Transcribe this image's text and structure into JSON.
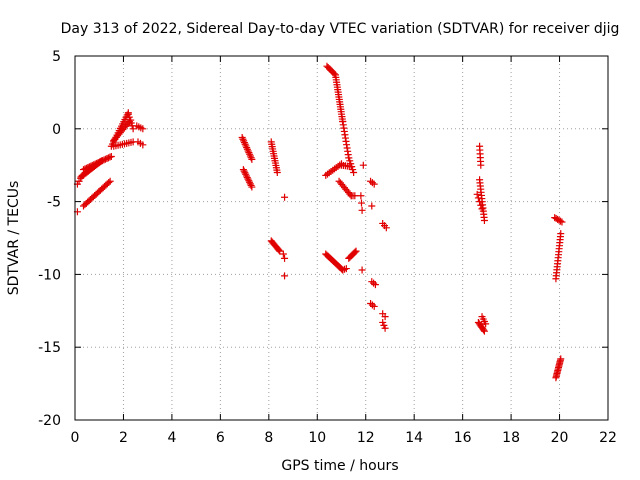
{
  "chart_data": {
    "type": "scatter",
    "title": "Day 313 of 2022, Sidereal Day-to-day VTEC variation (SDTVAR) for receiver djig",
    "xlabel": "GPS time / hours",
    "ylabel": "SDTVAR / TECUs",
    "xlim": [
      0,
      22
    ],
    "ylim": [
      -20,
      5
    ],
    "xticks": [
      "0",
      "2",
      "4",
      "6",
      "8",
      "10",
      "12",
      "14",
      "16",
      "18",
      "20",
      "22"
    ],
    "yticks": [
      "5",
      "0",
      "-5",
      "-10",
      "-15",
      "-20"
    ],
    "grid": true,
    "legend": "none",
    "marker": "+",
    "color": "#e00000",
    "segments": [
      {
        "x0": 0.1,
        "y0": -3.8,
        "x1": 0.3,
        "y1": -3.2,
        "n": 4
      },
      {
        "x0": 0.25,
        "y0": -3.3,
        "x1": 1.1,
        "y1": -2.2,
        "n": 18
      },
      {
        "x0": 0.35,
        "y0": -2.8,
        "x1": 1.5,
        "y1": -1.9,
        "n": 20
      },
      {
        "x0": 1.5,
        "y0": -1.2,
        "x1": 2.2,
        "y1": 1.1,
        "n": 16
      },
      {
        "x0": 1.6,
        "y0": -0.8,
        "x1": 2.3,
        "y1": 0.6,
        "n": 14
      },
      {
        "x0": 2.2,
        "y0": 1.0,
        "x1": 2.4,
        "y1": 0.0,
        "n": 6
      },
      {
        "x0": 1.6,
        "y0": -1.2,
        "x1": 2.4,
        "y1": -0.9,
        "n": 10
      },
      {
        "x0": 2.55,
        "y0": 0.2,
        "x1": 2.8,
        "y1": 0.0,
        "n": 4
      },
      {
        "x0": 2.6,
        "y0": -0.9,
        "x1": 2.8,
        "y1": -1.1,
        "n": 3
      },
      {
        "x0": 0.35,
        "y0": -5.3,
        "x1": 1.45,
        "y1": -3.6,
        "n": 20
      },
      {
        "x0": 0.1,
        "y0": -5.7,
        "x1": 0.15,
        "y1": -5.7,
        "n": 1
      },
      {
        "x0": 6.9,
        "y0": -0.6,
        "x1": 7.3,
        "y1": -2.1,
        "n": 14
      },
      {
        "x0": 6.95,
        "y0": -2.8,
        "x1": 7.3,
        "y1": -4.0,
        "n": 12
      },
      {
        "x0": 8.1,
        "y0": -0.9,
        "x1": 8.35,
        "y1": -3.0,
        "n": 14
      },
      {
        "x0": 8.1,
        "y0": -7.7,
        "x1": 8.45,
        "y1": -8.4,
        "n": 10
      },
      {
        "x0": 8.6,
        "y0": -8.6,
        "x1": 8.65,
        "y1": -8.9,
        "n": 2
      },
      {
        "x0": 8.65,
        "y0": -4.7,
        "x1": 8.65,
        "y1": -4.7,
        "n": 1
      },
      {
        "x0": 8.65,
        "y0": -10.1,
        "x1": 8.65,
        "y1": -10.1,
        "n": 1
      },
      {
        "x0": 10.4,
        "y0": 4.3,
        "x1": 10.75,
        "y1": 3.7,
        "n": 8
      },
      {
        "x0": 10.75,
        "y0": 3.7,
        "x1": 11.05,
        "y1": 0.5,
        "n": 20
      },
      {
        "x0": 11.05,
        "y0": 0.5,
        "x1": 11.3,
        "y1": -2.0,
        "n": 12
      },
      {
        "x0": 11.3,
        "y0": -2.0,
        "x1": 11.5,
        "y1": -3.0,
        "n": 6
      },
      {
        "x0": 10.35,
        "y0": -3.2,
        "x1": 11.0,
        "y1": -2.4,
        "n": 10
      },
      {
        "x0": 11.0,
        "y0": -2.5,
        "x1": 11.4,
        "y1": -2.6,
        "n": 6
      },
      {
        "x0": 10.9,
        "y0": -3.6,
        "x1": 11.4,
        "y1": -4.6,
        "n": 10
      },
      {
        "x0": 11.4,
        "y0": -4.6,
        "x1": 11.55,
        "y1": -4.6,
        "n": 3
      },
      {
        "x0": 10.35,
        "y0": -8.6,
        "x1": 11.05,
        "y1": -9.7,
        "n": 16
      },
      {
        "x0": 11.05,
        "y0": -9.7,
        "x1": 11.2,
        "y1": -9.6,
        "n": 3
      },
      {
        "x0": 11.3,
        "y0": -8.9,
        "x1": 11.6,
        "y1": -8.4,
        "n": 8
      },
      {
        "x0": 11.9,
        "y0": -2.5,
        "x1": 11.9,
        "y1": -2.5,
        "n": 1
      },
      {
        "x0": 11.8,
        "y0": -4.6,
        "x1": 11.85,
        "y1": -5.6,
        "n": 3
      },
      {
        "x0": 11.85,
        "y0": -9.7,
        "x1": 11.85,
        "y1": -9.7,
        "n": 1
      },
      {
        "x0": 12.2,
        "y0": -3.6,
        "x1": 12.35,
        "y1": -3.8,
        "n": 3
      },
      {
        "x0": 12.25,
        "y0": -5.3,
        "x1": 12.3,
        "y1": -5.3,
        "n": 1
      },
      {
        "x0": 12.25,
        "y0": -10.5,
        "x1": 12.4,
        "y1": -10.7,
        "n": 3
      },
      {
        "x0": 12.2,
        "y0": -12.0,
        "x1": 12.35,
        "y1": -12.2,
        "n": 3
      },
      {
        "x0": 12.7,
        "y0": -6.5,
        "x1": 12.85,
        "y1": -6.8,
        "n": 3
      },
      {
        "x0": 12.7,
        "y0": -12.7,
        "x1": 12.8,
        "y1": -12.9,
        "n": 2
      },
      {
        "x0": 12.7,
        "y0": -13.3,
        "x1": 12.8,
        "y1": -13.7,
        "n": 3
      },
      {
        "x0": 16.7,
        "y0": -1.2,
        "x1": 16.75,
        "y1": -2.5,
        "n": 6
      },
      {
        "x0": 16.7,
        "y0": -3.5,
        "x1": 16.9,
        "y1": -6.3,
        "n": 14
      },
      {
        "x0": 16.6,
        "y0": -4.5,
        "x1": 16.8,
        "y1": -5.5,
        "n": 5
      },
      {
        "x0": 16.65,
        "y0": -13.3,
        "x1": 16.9,
        "y1": -13.9,
        "n": 8
      },
      {
        "x0": 16.8,
        "y0": -12.9,
        "x1": 16.95,
        "y1": -13.4,
        "n": 4
      },
      {
        "x0": 19.8,
        "y0": -6.1,
        "x1": 20.1,
        "y1": -6.4,
        "n": 6
      },
      {
        "x0": 19.85,
        "y0": -10.3,
        "x1": 20.05,
        "y1": -7.2,
        "n": 16
      },
      {
        "x0": 19.85,
        "y0": -17.1,
        "x1": 20.05,
        "y1": -15.8,
        "n": 14
      }
    ]
  }
}
